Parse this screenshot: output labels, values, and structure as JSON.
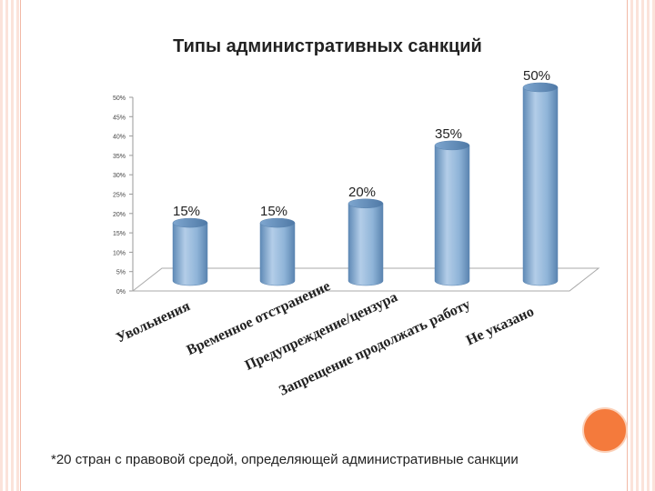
{
  "chart_data": {
    "type": "bar",
    "title": "Типы административных санкций",
    "categories": [
      "Увольнения",
      "Временное отстранение",
      "Предупреждение/цензура",
      "Запрещение продолжать работу",
      "Не указано"
    ],
    "values": [
      15,
      15,
      20,
      35,
      50
    ],
    "data_labels": [
      "15%",
      "15%",
      "20%",
      "35%",
      "50%"
    ],
    "ylim": [
      0,
      50
    ],
    "yticks": [
      "0%",
      "5%",
      "10%",
      "15%",
      "20%",
      "25%",
      "30%",
      "35%",
      "40%",
      "45%",
      "50%"
    ],
    "xlabel": "",
    "ylabel": "",
    "bar_color": "#8fb4d8",
    "legend": "none"
  },
  "footnote": "*20 стран с правовой средой, определяющей административные санкции",
  "colors": {
    "accent_dot": "#f47a3c",
    "border_tint": "#fbe3da"
  }
}
